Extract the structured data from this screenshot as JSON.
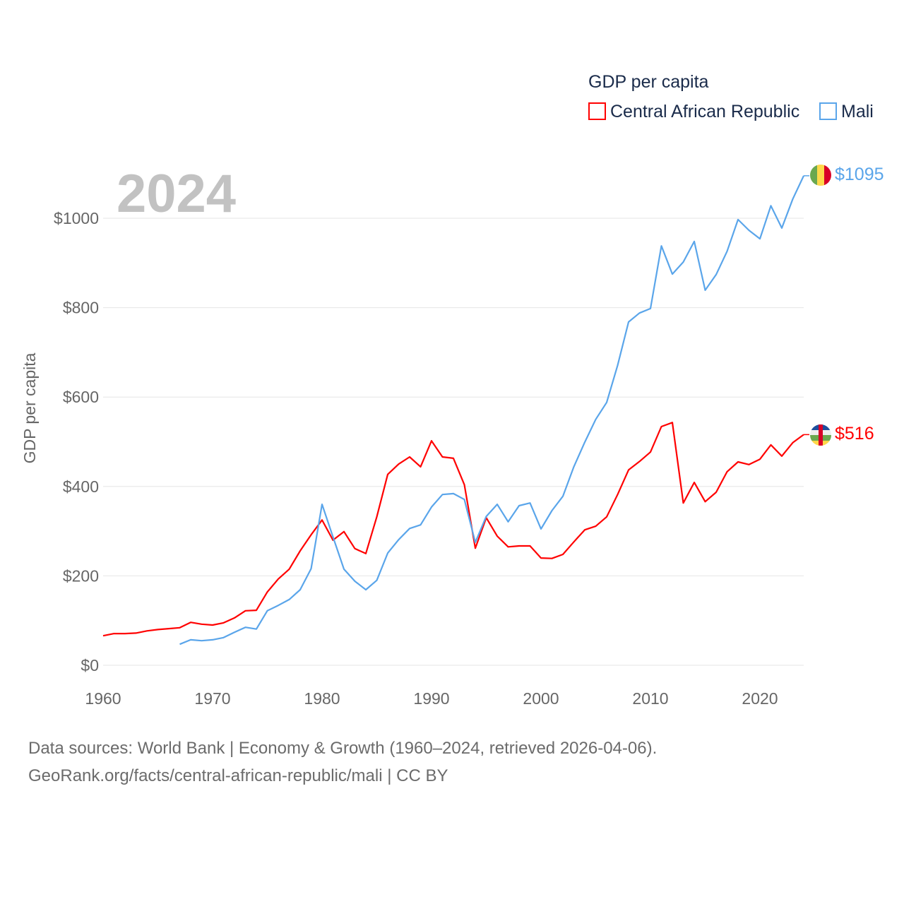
{
  "chart_data": {
    "type": "line",
    "title": "GDP per capita",
    "year_label": "2024",
    "ylabel": "GDP per capita",
    "xlabel": "",
    "xlim": [
      1960,
      2024
    ],
    "ylim": [
      0,
      1000
    ],
    "x_ticks": [
      1960,
      1970,
      1980,
      1990,
      2000,
      2010,
      2020
    ],
    "x_tick_labels": [
      "1960",
      "1970",
      "1980",
      "1990",
      "2000",
      "2010",
      "2020"
    ],
    "y_ticks": [
      0,
      200,
      400,
      600,
      800,
      1000
    ],
    "y_tick_labels": [
      "$0",
      "$200",
      "$400",
      "$600",
      "$800",
      "$1000"
    ],
    "grid": true,
    "legend_position": "top-right",
    "series": [
      {
        "name": "Central African Republic",
        "color": "#ff0000",
        "start_year": 1960,
        "end_label": "$516",
        "values": [
          66,
          71,
          71,
          72,
          77,
          80,
          82,
          84,
          96,
          92,
          90,
          95,
          106,
          122,
          123,
          164,
          193,
          215,
          256,
          292,
          325,
          280,
          299,
          261,
          250,
          332,
          427,
          450,
          466,
          444,
          502,
          466,
          463,
          404,
          262,
          330,
          289,
          265,
          267,
          267,
          240,
          239,
          248,
          276,
          303,
          311,
          332,
          382,
          437,
          456,
          477,
          534,
          543,
          363,
          409,
          366,
          387,
          433,
          455,
          449,
          461,
          493,
          468,
          498,
          516
        ]
      },
      {
        "name": "Mali",
        "color": "#5aa5ea",
        "start_year": 1967,
        "end_label": "$1095",
        "values": [
          47,
          57,
          55,
          57,
          62,
          74,
          85,
          81,
          122,
          134,
          147,
          169,
          216,
          360,
          287,
          215,
          188,
          169,
          190,
          251,
          281,
          306,
          314,
          354,
          382,
          384,
          371,
          275,
          333,
          360,
          321,
          357,
          363,
          305,
          346,
          378,
          444,
          499,
          550,
          588,
          671,
          768,
          788,
          798,
          938,
          875,
          902,
          948,
          839,
          874,
          926,
          997,
          973,
          954,
          1028,
          978,
          1043,
          1095
        ]
      }
    ]
  },
  "footer": {
    "line1": "Data sources: World Bank | Economy & Growth (1960–2024, retrieved 2026-04-06).",
    "line2": "GeoRank.org/facts/central-african-republic/mali | CC BY"
  }
}
